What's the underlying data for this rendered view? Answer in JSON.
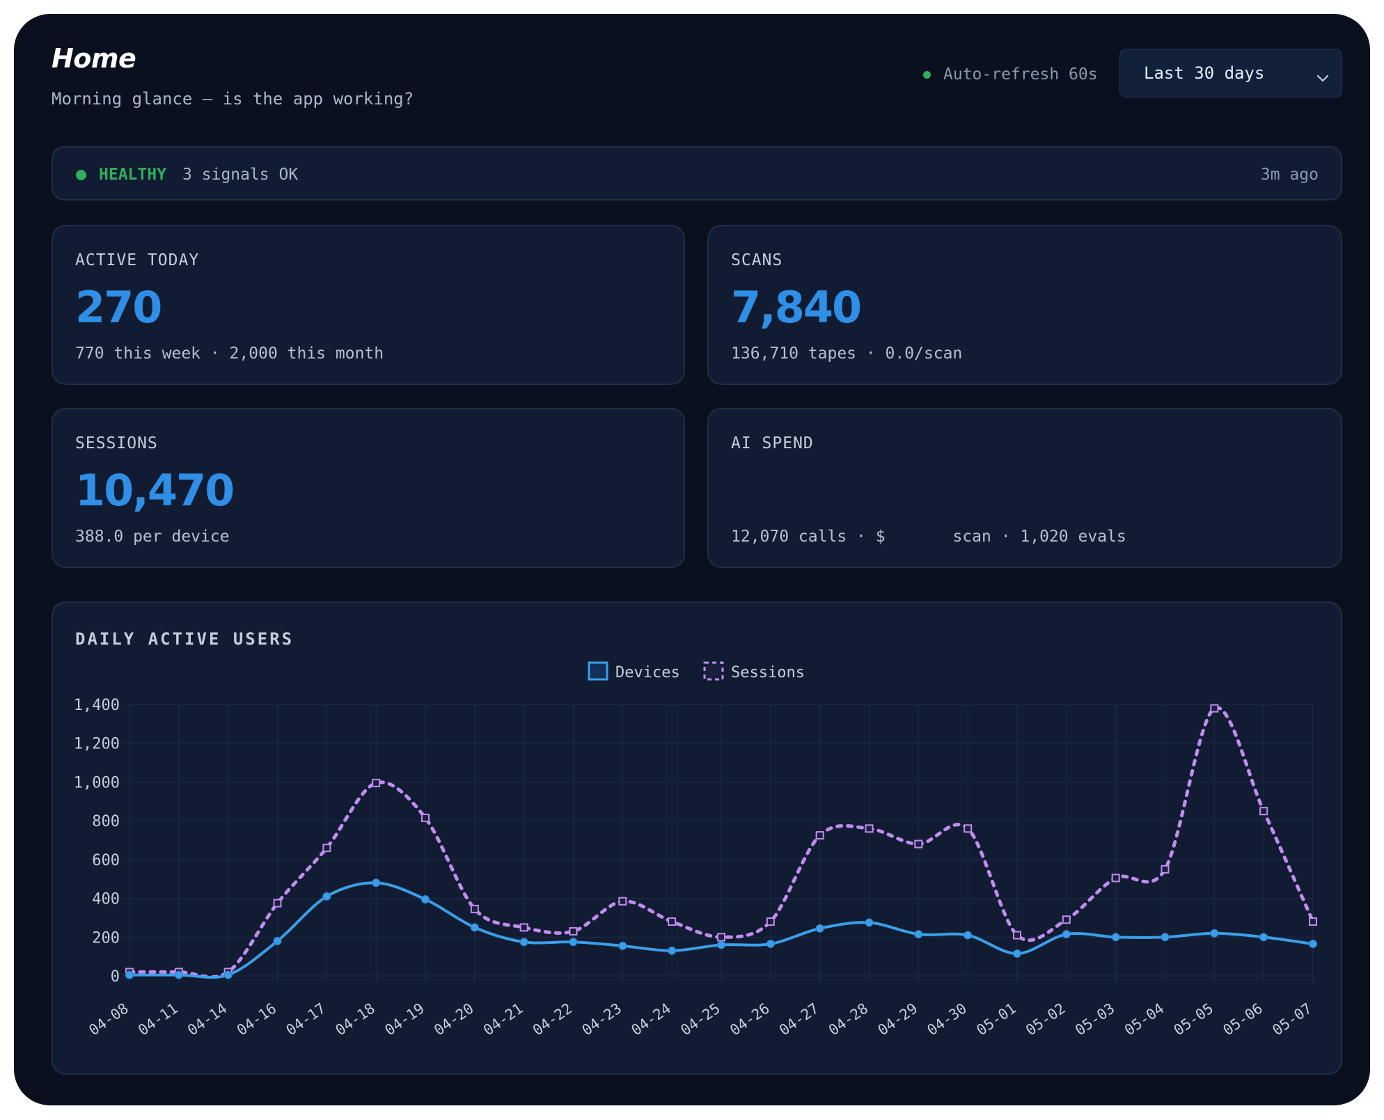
{
  "header": {
    "title": "Home",
    "subtitle": "Morning glance — is the app working?",
    "auto_refresh": "Auto-refresh 60s",
    "range_select": "Last 30 days"
  },
  "health": {
    "status": "HEALTHY",
    "detail": "3 signals OK",
    "age": "3m ago"
  },
  "cards": {
    "active_today": {
      "label": "ACTIVE TODAY",
      "value": "270",
      "sub": "770 this week · 2,000 this month"
    },
    "scans": {
      "label": "SCANS",
      "value": "7,840",
      "sub": "136,710 tapes · 0.0/scan"
    },
    "sessions": {
      "label": "SESSIONS",
      "value": "10,470",
      "sub": "388.0 per device"
    },
    "ai_spend": {
      "label": "AI SPEND",
      "value": "",
      "sub": "12,070 calls · $       scan · 1,020 evals"
    }
  },
  "colors": {
    "accent": "#2f8fe6",
    "healthy": "#2fae5c",
    "devices": "#3b9fe8",
    "sessions": "#c18cf0"
  },
  "chart_data": {
    "type": "line",
    "title": "DAILY ACTIVE USERS",
    "categories": [
      "04-08",
      "04-11",
      "04-14",
      "04-16",
      "04-17",
      "04-18",
      "04-19",
      "04-20",
      "04-21",
      "04-22",
      "04-23",
      "04-24",
      "04-25",
      "04-26",
      "04-27",
      "04-28",
      "04-29",
      "04-30",
      "05-01",
      "05-02",
      "05-03",
      "05-04",
      "05-05",
      "05-06",
      "05-07"
    ],
    "series": [
      {
        "name": "Devices",
        "color": "#3b9fe8",
        "style": "solid",
        "values": [
          5,
          5,
          5,
          180,
          410,
          480,
          395,
          250,
          175,
          175,
          155,
          130,
          160,
          165,
          245,
          275,
          215,
          210,
          115,
          215,
          200,
          200,
          220,
          200,
          165
        ]
      },
      {
        "name": "Sessions",
        "color": "#c18cf0",
        "style": "dashed",
        "values": [
          20,
          20,
          20,
          375,
          660,
          995,
          815,
          345,
          250,
          230,
          385,
          280,
          200,
          280,
          725,
          760,
          680,
          760,
          210,
          290,
          505,
          550,
          1380,
          850,
          280
        ]
      }
    ],
    "yticks": [
      "0",
      "200",
      "400",
      "600",
      "800",
      "1,000",
      "1,200",
      "1,400"
    ],
    "ylim": [
      0,
      1400
    ],
    "legend": "top-center",
    "grid": true
  }
}
